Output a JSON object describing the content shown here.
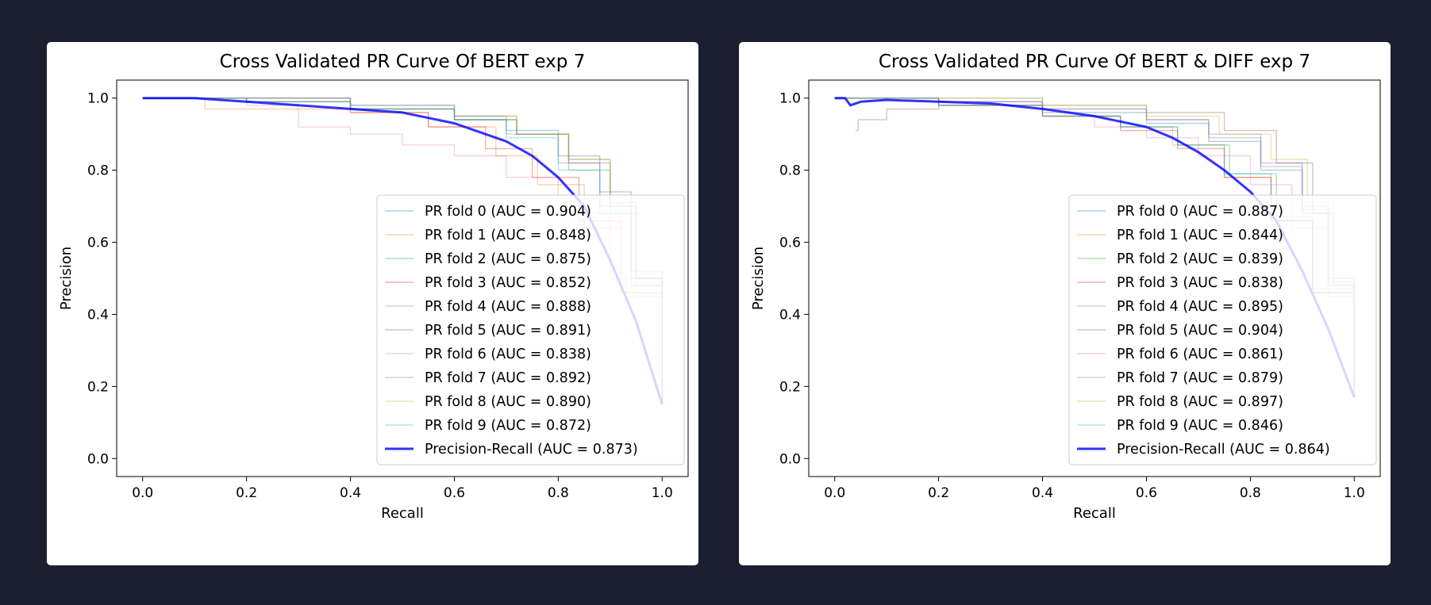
{
  "chart_data": [
    {
      "type": "line",
      "title": "Cross Validated PR Curve Of BERT exp 7",
      "xlabel": "Recall",
      "ylabel": "Precision",
      "xlim": [
        -0.05,
        1.05
      ],
      "ylim": [
        -0.05,
        1.05
      ],
      "xticks": [
        "0.0",
        "0.2",
        "0.4",
        "0.6",
        "0.8",
        "1.0"
      ],
      "yticks": [
        "0.0",
        "0.2",
        "0.4",
        "0.6",
        "0.8",
        "1.0"
      ],
      "grid": false,
      "legend_position": "lower-right",
      "series": [
        {
          "name": "PR fold 0 (AUC = 0.904)",
          "color": "#1f77b4",
          "x": [
            0,
            0.2,
            0.4,
            0.6,
            0.7,
            0.8,
            0.88,
            0.94,
            1.0
          ],
          "y": [
            1,
            1,
            0.98,
            0.95,
            0.91,
            0.84,
            0.74,
            0.52,
            0.15
          ]
        },
        {
          "name": "PR fold 1 (AUC = 0.848)",
          "color": "#ff7f0e",
          "x": [
            0,
            0.12,
            0.2,
            0.4,
            0.55,
            0.68,
            0.76,
            0.85,
            0.93,
            1.0
          ],
          "y": [
            1,
            0.97,
            0.97,
            0.96,
            0.92,
            0.84,
            0.76,
            0.64,
            0.45,
            0.15
          ]
        },
        {
          "name": "PR fold 2 (AUC = 0.875)",
          "color": "#2ca02c",
          "x": [
            0,
            0.2,
            0.4,
            0.6,
            0.72,
            0.82,
            0.9,
            0.95,
            1.0
          ],
          "y": [
            1,
            0.99,
            0.97,
            0.94,
            0.9,
            0.8,
            0.68,
            0.48,
            0.15
          ]
        },
        {
          "name": "PR fold 3 (AUC = 0.852)",
          "color": "#d62728",
          "x": [
            0,
            0.2,
            0.4,
            0.55,
            0.66,
            0.75,
            0.84,
            0.92,
            1.0
          ],
          "y": [
            1,
            0.99,
            0.96,
            0.92,
            0.86,
            0.78,
            0.66,
            0.46,
            0.15
          ]
        },
        {
          "name": "PR fold 4 (AUC = 0.888)",
          "color": "#9467bd",
          "x": [
            0,
            0.2,
            0.4,
            0.6,
            0.7,
            0.8,
            0.88,
            0.94,
            1.0
          ],
          "y": [
            1,
            0.99,
            0.97,
            0.94,
            0.9,
            0.82,
            0.7,
            0.5,
            0.15
          ]
        },
        {
          "name": "PR fold 5 (AUC = 0.891)",
          "color": "#8c564b",
          "x": [
            0,
            0.2,
            0.4,
            0.6,
            0.72,
            0.82,
            0.9,
            0.95,
            1.0
          ],
          "y": [
            1,
            1,
            0.97,
            0.94,
            0.9,
            0.82,
            0.7,
            0.5,
            0.15
          ]
        },
        {
          "name": "PR fold 6 (AUC = 0.838)",
          "color": "#e377c2",
          "x": [
            0,
            0.2,
            0.3,
            0.4,
            0.5,
            0.6,
            0.7,
            0.8,
            0.9,
            1.0
          ],
          "y": [
            1,
            0.98,
            0.92,
            0.9,
            0.87,
            0.84,
            0.78,
            0.68,
            0.5,
            0.15
          ]
        },
        {
          "name": "PR fold 7 (AUC = 0.892)",
          "color": "#7f7f7f",
          "x": [
            0,
            0.2,
            0.4,
            0.6,
            0.72,
            0.82,
            0.9,
            0.95,
            1.0
          ],
          "y": [
            1,
            1,
            0.98,
            0.95,
            0.9,
            0.83,
            0.71,
            0.5,
            0.15
          ]
        },
        {
          "name": "PR fold 8 (AUC = 0.890)",
          "color": "#bcbd22",
          "x": [
            0,
            0.2,
            0.4,
            0.6,
            0.72,
            0.82,
            0.9,
            0.95,
            1.0
          ],
          "y": [
            1,
            0.99,
            0.97,
            0.95,
            0.9,
            0.83,
            0.71,
            0.5,
            0.15
          ]
        },
        {
          "name": "PR fold 9 (AUC = 0.872)",
          "color": "#17becf",
          "x": [
            0,
            0.2,
            0.4,
            0.6,
            0.7,
            0.8,
            0.88,
            0.94,
            1.0
          ],
          "y": [
            1,
            0.99,
            0.97,
            0.94,
            0.89,
            0.8,
            0.68,
            0.48,
            0.15
          ]
        },
        {
          "name": "Precision-Recall (AUC = 0.873)",
          "color": "#0000ff",
          "mean": true,
          "x": [
            0,
            0.1,
            0.2,
            0.3,
            0.4,
            0.5,
            0.6,
            0.7,
            0.75,
            0.8,
            0.85,
            0.9,
            0.95,
            1.0
          ],
          "y": [
            1,
            1,
            0.99,
            0.98,
            0.97,
            0.96,
            0.93,
            0.88,
            0.84,
            0.78,
            0.7,
            0.55,
            0.38,
            0.15
          ]
        }
      ]
    },
    {
      "type": "line",
      "title": "Cross Validated PR Curve Of BERT & DIFF exp 7",
      "xlabel": "Recall",
      "ylabel": "Precision",
      "xlim": [
        -0.05,
        1.05
      ],
      "ylim": [
        -0.05,
        1.05
      ],
      "xticks": [
        "0.0",
        "0.2",
        "0.4",
        "0.6",
        "0.8",
        "1.0"
      ],
      "yticks": [
        "0.0",
        "0.2",
        "0.4",
        "0.6",
        "0.8",
        "1.0"
      ],
      "grid": false,
      "legend_position": "lower-right",
      "series": [
        {
          "name": "PR fold 0 (AUC = 0.887)",
          "color": "#1f77b4",
          "x": [
            0,
            0.2,
            0.4,
            0.6,
            0.72,
            0.82,
            0.9,
            0.95,
            1.0
          ],
          "y": [
            1,
            0.99,
            0.96,
            0.93,
            0.88,
            0.8,
            0.68,
            0.48,
            0.17
          ]
        },
        {
          "name": "PR fold 1 (AUC = 0.844)",
          "color": "#ff7f0e",
          "x": [
            0,
            0.2,
            0.4,
            0.55,
            0.65,
            0.75,
            0.84,
            0.92,
            1.0
          ],
          "y": [
            1,
            0.98,
            0.95,
            0.92,
            0.87,
            0.78,
            0.66,
            0.46,
            0.17
          ]
        },
        {
          "name": "PR fold 2 (AUC = 0.839)",
          "color": "#2ca02c",
          "x": [
            0,
            0.2,
            0.4,
            0.55,
            0.66,
            0.76,
            0.85,
            0.92,
            1.0
          ],
          "y": [
            1,
            0.98,
            0.95,
            0.92,
            0.87,
            0.79,
            0.66,
            0.46,
            0.17
          ]
        },
        {
          "name": "PR fold 3 (AUC = 0.838)",
          "color": "#d62728",
          "x": [
            0,
            0.2,
            0.4,
            0.55,
            0.66,
            0.75,
            0.84,
            0.92,
            1.0
          ],
          "y": [
            1,
            0.98,
            0.95,
            0.91,
            0.86,
            0.78,
            0.66,
            0.46,
            0.17
          ]
        },
        {
          "name": "PR fold 4 (AUC = 0.895)",
          "color": "#9467bd",
          "x": [
            0,
            0.2,
            0.4,
            0.6,
            0.72,
            0.82,
            0.9,
            0.95,
            1.0
          ],
          "y": [
            1,
            0.99,
            0.97,
            0.94,
            0.9,
            0.82,
            0.7,
            0.5,
            0.17
          ]
        },
        {
          "name": "PR fold 5 (AUC = 0.904)",
          "color": "#8c564b",
          "x": [
            0.04,
            0.045,
            0.1,
            0.2,
            0.4,
            0.6,
            0.75,
            0.85,
            0.92,
            0.96,
            1.0
          ],
          "y": [
            0.91,
            0.94,
            0.97,
            0.98,
            0.98,
            0.96,
            0.91,
            0.82,
            0.68,
            0.48,
            0.17
          ]
        },
        {
          "name": "PR fold 6 (AUC = 0.861)",
          "color": "#e377c2",
          "x": [
            0,
            0.2,
            0.4,
            0.5,
            0.6,
            0.7,
            0.8,
            0.88,
            0.95,
            1.0
          ],
          "y": [
            1,
            0.99,
            0.95,
            0.92,
            0.89,
            0.84,
            0.76,
            0.64,
            0.45,
            0.17
          ]
        },
        {
          "name": "PR fold 7 (AUC = 0.879)",
          "color": "#7f7f7f",
          "x": [
            0,
            0.2,
            0.4,
            0.6,
            0.72,
            0.82,
            0.9,
            0.95,
            1.0
          ],
          "y": [
            1,
            1,
            0.97,
            0.94,
            0.89,
            0.81,
            0.69,
            0.49,
            0.17
          ]
        },
        {
          "name": "PR fold 8 (AUC = 0.897)",
          "color": "#bcbd22",
          "x": [
            0,
            0.2,
            0.4,
            0.6,
            0.74,
            0.84,
            0.91,
            0.96,
            1.0
          ],
          "y": [
            1,
            1,
            0.98,
            0.95,
            0.9,
            0.83,
            0.71,
            0.5,
            0.17
          ]
        },
        {
          "name": "PR fold 9 (AUC = 0.846)",
          "color": "#17becf",
          "x": [
            0,
            0.2,
            0.4,
            0.55,
            0.66,
            0.75,
            0.84,
            0.92,
            1.0
          ],
          "y": [
            1,
            0.98,
            0.95,
            0.92,
            0.87,
            0.79,
            0.67,
            0.47,
            0.17
          ]
        },
        {
          "name": "Precision-Recall (AUC = 0.864)",
          "color": "#0000ff",
          "mean": true,
          "x": [
            0,
            0.02,
            0.03,
            0.05,
            0.1,
            0.2,
            0.3,
            0.4,
            0.5,
            0.6,
            0.65,
            0.7,
            0.75,
            0.8,
            0.85,
            0.9,
            0.95,
            1.0
          ],
          "y": [
            1,
            1,
            0.98,
            0.99,
            0.995,
            0.99,
            0.985,
            0.97,
            0.95,
            0.92,
            0.89,
            0.85,
            0.8,
            0.74,
            0.66,
            0.52,
            0.36,
            0.17
          ]
        }
      ]
    }
  ]
}
